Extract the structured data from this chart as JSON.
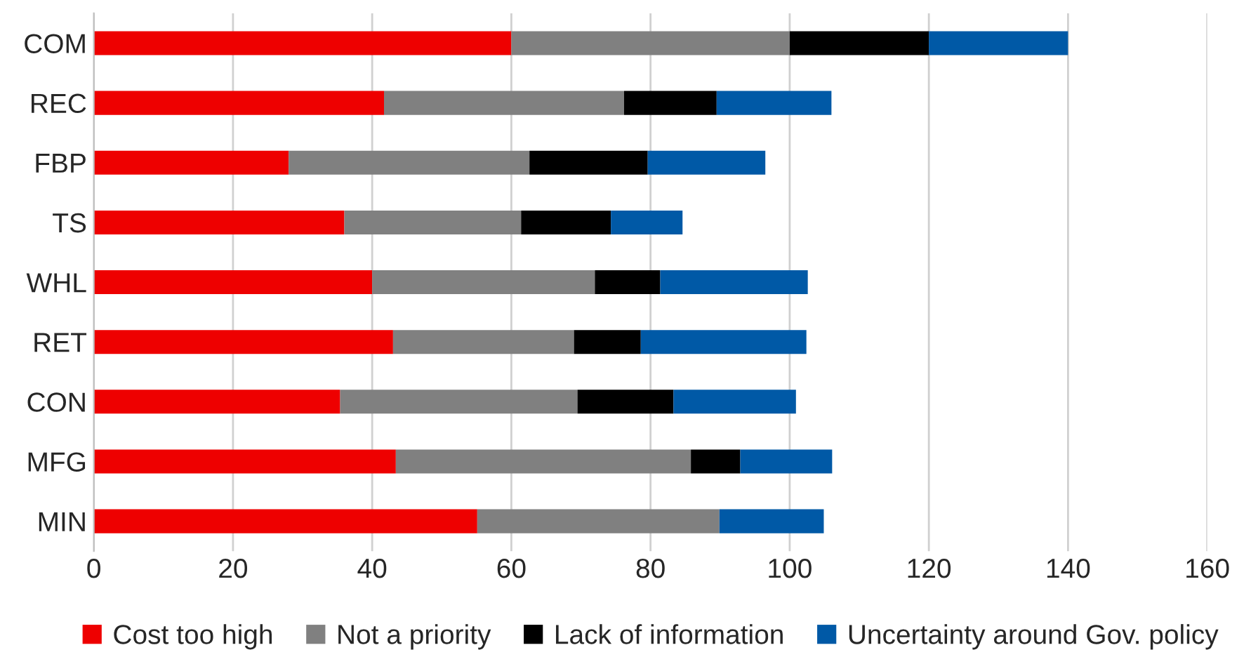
{
  "chart_data": {
    "type": "bar",
    "orientation": "horizontal",
    "stacked": true,
    "categories": [
      "COM",
      "REC",
      "FBP",
      "TS",
      "WHL",
      "RET",
      "CON",
      "MFG",
      "MIN"
    ],
    "series": [
      {
        "name": "Cost too high",
        "color": "#ee0000",
        "values": [
          60,
          41.7,
          28,
          36,
          40,
          43,
          35.4,
          43.4,
          55.1
        ]
      },
      {
        "name": "Not a priority",
        "color": "#808080",
        "values": [
          40,
          34.5,
          34.6,
          25.4,
          32,
          26,
          34.1,
          42.4,
          34.8
        ]
      },
      {
        "name": "Lack of information",
        "color": "#000000",
        "values": [
          20,
          13.3,
          17,
          12.9,
          9.4,
          9.6,
          13.8,
          7.1,
          0
        ]
      },
      {
        "name": "Uncertainty around Gov. policy",
        "color": "#0059a6",
        "values": [
          20,
          16.5,
          16.9,
          10.3,
          21.2,
          23.8,
          17.6,
          13.2,
          15
        ]
      }
    ],
    "xlim": [
      0,
      160
    ],
    "xticks": [
      0,
      20,
      40,
      60,
      80,
      100,
      120,
      140,
      160
    ],
    "grid": "x",
    "legend": "bottom"
  }
}
